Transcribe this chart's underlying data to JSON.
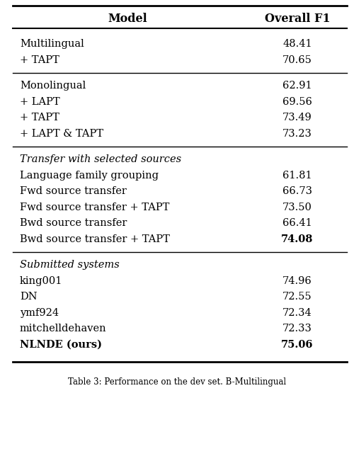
{
  "title_col1": "Model",
  "title_col2": "Overall F1",
  "sections": [
    {
      "header": null,
      "rows": [
        {
          "model": "Multilingual",
          "f1": "48.41",
          "bold_model": false,
          "bold_f1": false
        },
        {
          "model": "+ TAPT",
          "f1": "70.65",
          "bold_model": false,
          "bold_f1": false
        }
      ]
    },
    {
      "header": null,
      "rows": [
        {
          "model": "Monolingual",
          "f1": "62.91",
          "bold_model": false,
          "bold_f1": false
        },
        {
          "model": "+ LAPT",
          "f1": "69.56",
          "bold_model": false,
          "bold_f1": false
        },
        {
          "model": "+ TAPT",
          "f1": "73.49",
          "bold_model": false,
          "bold_f1": false
        },
        {
          "model": "+ LAPT & TAPT",
          "f1": "73.23",
          "bold_model": false,
          "bold_f1": false
        }
      ]
    },
    {
      "header": "Transfer with selected sources",
      "rows": [
        {
          "model": "Language family grouping",
          "f1": "61.81",
          "bold_model": false,
          "bold_f1": false
        },
        {
          "model": "Fwd source transfer",
          "f1": "66.73",
          "bold_model": false,
          "bold_f1": false
        },
        {
          "model": "Fwd source transfer + TAPT",
          "f1": "73.50",
          "bold_model": false,
          "bold_f1": false
        },
        {
          "model": "Bwd source transfer",
          "f1": "66.41",
          "bold_model": false,
          "bold_f1": false
        },
        {
          "model": "Bwd source transfer + TAPT",
          "f1": "74.08",
          "bold_model": false,
          "bold_f1": true
        }
      ]
    },
    {
      "header": "Submitted systems",
      "rows": [
        {
          "model": "king001",
          "f1": "74.96",
          "bold_model": false,
          "bold_f1": false
        },
        {
          "model": "DN",
          "f1": "72.55",
          "bold_model": false,
          "bold_f1": false
        },
        {
          "model": "ymf924",
          "f1": "72.34",
          "bold_model": false,
          "bold_f1": false
        },
        {
          "model": "mitchelldehaven",
          "f1": "72.33",
          "bold_model": false,
          "bold_f1": false
        },
        {
          "model": "NLNDE (ours)",
          "f1": "75.06",
          "bold_model": true,
          "bold_f1": true
        }
      ]
    }
  ],
  "caption": "Table 3: Performance on the dev set. B-Multilingual",
  "bg_color": "#ffffff",
  "text_color": "#000000",
  "line_color": "#000000",
  "font_size": 10.5,
  "header_font_size": 11.5,
  "caption_font_size": 8.5
}
